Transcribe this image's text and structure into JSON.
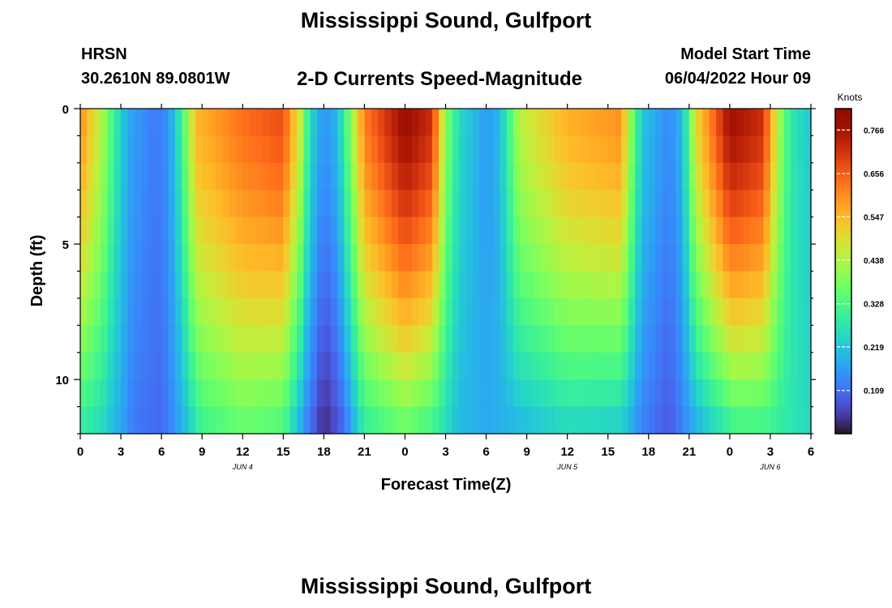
{
  "header": {
    "title": "Mississippi Sound, Gulfport",
    "station": "HRSN",
    "coords": "30.2610N  89.0801W",
    "subtitle": "2-D Currents Speed-Magnitude",
    "model_label": "Model Start Time",
    "model_time": "06/04/2022 Hour 09",
    "footer_title": "Mississippi Sound, Gulfport"
  },
  "chart_data": {
    "type": "heatmap",
    "title": "2-D Currents Speed-Magnitude",
    "xlabel": "Forecast Time(Z)",
    "ylabel": "Depth (ft)",
    "x_range_hours": [
      0,
      54
    ],
    "y_range_ft": [
      0,
      12
    ],
    "x_ticks": [
      0,
      3,
      6,
      9,
      12,
      15,
      18,
      21,
      24,
      27,
      30,
      33,
      36,
      39,
      42,
      45,
      48,
      51,
      54
    ],
    "x_tick_labels": [
      "0",
      "3",
      "6",
      "9",
      "12",
      "15",
      "18",
      "21",
      "0",
      "3",
      "6",
      "9",
      "12",
      "15",
      "18",
      "21",
      "0",
      "3",
      "6"
    ],
    "y_ticks": [
      0,
      5,
      10
    ],
    "y_tick_labels": [
      "0",
      "5",
      "10"
    ],
    "date_labels": [
      {
        "label": "JUN 4",
        "hour": 12
      },
      {
        "label": "JUN 5",
        "hour": 36
      },
      {
        "label": "JUN 6",
        "hour": 51
      }
    ],
    "colorbar": {
      "unit": "Knots",
      "min": 0.0,
      "max": 0.82,
      "tick_values": [
        0.109,
        0.219,
        0.328,
        0.438,
        0.547,
        0.656,
        0.766
      ],
      "tick_labels": [
        "0.109",
        "0.219",
        "0.328",
        "0.438",
        "0.547",
        "0.656",
        "0.766"
      ],
      "colormap": "turbo"
    },
    "surface_speed_knots": [
      {
        "hour": 0,
        "value": 0.6
      },
      {
        "hour": 1.5,
        "value": 0.45
      },
      {
        "hour": 2.5,
        "value": 0.3
      },
      {
        "hour": 3.5,
        "value": 0.18
      },
      {
        "hour": 5.5,
        "value": 0.12
      },
      {
        "hour": 6.5,
        "value": 0.15
      },
      {
        "hour": 7.5,
        "value": 0.3
      },
      {
        "hour": 8.5,
        "value": 0.55
      },
      {
        "hour": 12,
        "value": 0.64
      },
      {
        "hour": 15,
        "value": 0.68
      },
      {
        "hour": 16.3,
        "value": 0.45
      },
      {
        "hour": 17,
        "value": 0.25
      },
      {
        "hour": 18,
        "value": 0.15
      },
      {
        "hour": 19,
        "value": 0.2
      },
      {
        "hour": 20,
        "value": 0.4
      },
      {
        "hour": 21,
        "value": 0.62
      },
      {
        "hour": 24,
        "value": 0.79
      },
      {
        "hour": 26,
        "value": 0.72
      },
      {
        "hour": 27,
        "value": 0.4
      },
      {
        "hour": 28,
        "value": 0.25
      },
      {
        "hour": 30,
        "value": 0.16
      },
      {
        "hour": 31,
        "value": 0.2
      },
      {
        "hour": 32.5,
        "value": 0.45
      },
      {
        "hour": 36,
        "value": 0.56
      },
      {
        "hour": 40,
        "value": 0.6
      },
      {
        "hour": 40.5,
        "value": 0.45
      },
      {
        "hour": 41.5,
        "value": 0.22
      },
      {
        "hour": 43.5,
        "value": 0.14
      },
      {
        "hour": 44.5,
        "value": 0.2
      },
      {
        "hour": 45.5,
        "value": 0.5
      },
      {
        "hour": 48,
        "value": 0.78
      },
      {
        "hour": 50.5,
        "value": 0.72
      },
      {
        "hour": 51.5,
        "value": 0.45
      },
      {
        "hour": 52.5,
        "value": 0.28
      },
      {
        "hour": 54,
        "value": 0.22
      }
    ],
    "bottom_speed_knots": [
      {
        "hour": 0,
        "value": 0.28
      },
      {
        "hour": 1.5,
        "value": 0.25
      },
      {
        "hour": 2.5,
        "value": 0.2
      },
      {
        "hour": 4,
        "value": 0.12
      },
      {
        "hour": 6,
        "value": 0.1
      },
      {
        "hour": 7.5,
        "value": 0.18
      },
      {
        "hour": 9,
        "value": 0.3
      },
      {
        "hour": 12,
        "value": 0.35
      },
      {
        "hour": 15,
        "value": 0.32
      },
      {
        "hour": 16.5,
        "value": 0.15
      },
      {
        "hour": 18,
        "value": 0.02
      },
      {
        "hour": 19.5,
        "value": 0.1
      },
      {
        "hour": 21,
        "value": 0.28
      },
      {
        "hour": 24,
        "value": 0.35
      },
      {
        "hour": 26,
        "value": 0.3
      },
      {
        "hour": 28,
        "value": 0.2
      },
      {
        "hour": 30,
        "value": 0.18
      },
      {
        "hour": 33,
        "value": 0.2
      },
      {
        "hour": 36,
        "value": 0.24
      },
      {
        "hour": 40,
        "value": 0.22
      },
      {
        "hour": 41.5,
        "value": 0.13
      },
      {
        "hour": 43.5,
        "value": 0.08
      },
      {
        "hour": 46,
        "value": 0.2
      },
      {
        "hour": 48.5,
        "value": 0.3
      },
      {
        "hour": 50.5,
        "value": 0.3
      },
      {
        "hour": 52,
        "value": 0.28
      },
      {
        "hour": 54,
        "value": 0.25
      }
    ],
    "cell_hours": 0.5,
    "cell_depth_ft": 1.0
  }
}
